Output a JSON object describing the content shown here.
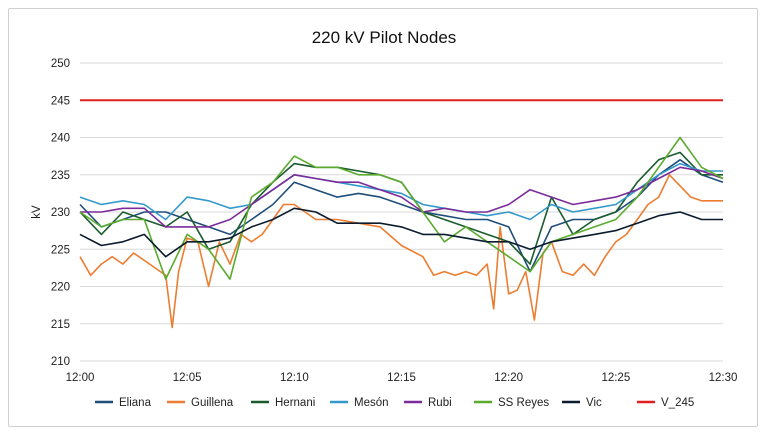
{
  "chart_data": {
    "type": "line",
    "title": "220 kV Pilot Nodes",
    "xlabel": "",
    "ylabel": "kV",
    "ylim": [
      210,
      250
    ],
    "yticks": [
      210,
      215,
      220,
      225,
      230,
      235,
      240,
      245,
      250
    ],
    "xlim": [
      "12:00",
      "12:30"
    ],
    "xticks": [
      "12:00",
      "12:05",
      "12:10",
      "12:15",
      "12:20",
      "12:25",
      "12:30"
    ],
    "grid": true,
    "legend_position": "bottom",
    "series": [
      {
        "name": "Eliana",
        "color": "#1f4e79",
        "x": [
          0,
          1,
          2,
          3,
          4,
          5,
          6,
          7,
          8,
          9,
          10,
          11,
          12,
          13,
          14,
          15,
          16,
          17,
          18,
          19,
          20,
          21,
          22,
          23,
          24,
          25,
          26,
          27,
          28,
          29,
          30
        ],
        "y": [
          231,
          228,
          229,
          230,
          230,
          229,
          228,
          227,
          229,
          231,
          234,
          233,
          232,
          232.5,
          232,
          231,
          230,
          229.5,
          229,
          229,
          228,
          222,
          228,
          229,
          229,
          230,
          232,
          235,
          237,
          235,
          234
        ]
      },
      {
        "name": "Guillena",
        "color": "#ed7d31",
        "x": [
          0,
          0.5,
          1,
          1.5,
          2,
          2.5,
          3,
          3.5,
          4,
          4.3,
          4.6,
          5,
          5.5,
          6,
          6.5,
          7,
          7.5,
          8,
          8.5,
          9,
          9.5,
          10,
          11,
          12,
          13,
          14,
          15,
          16,
          16.5,
          17,
          17.5,
          18,
          18.5,
          19,
          19.3,
          19.6,
          20,
          20.4,
          20.8,
          21.2,
          21.6,
          22,
          22.5,
          23,
          23.5,
          24,
          24.5,
          25,
          25.5,
          26,
          26.5,
          27,
          27.5,
          28,
          28.5,
          29,
          29.5,
          30
        ],
        "y": [
          224,
          221.5,
          223,
          224,
          223,
          224.5,
          223.5,
          222.5,
          221.5,
          214.5,
          222,
          226.5,
          226,
          220,
          226,
          223,
          227,
          226,
          227,
          229,
          231,
          231,
          229,
          229,
          228.5,
          228,
          225.5,
          224,
          221.5,
          222,
          221.5,
          222,
          221.5,
          223,
          217,
          228,
          219,
          219.5,
          222,
          215.5,
          224.5,
          226,
          222,
          221.5,
          223,
          221.5,
          224,
          226,
          227,
          229,
          231,
          232,
          235,
          233.5,
          232,
          231.5,
          231.5,
          231.5
        ]
      },
      {
        "name": "Hernani",
        "color": "#1a5c2e",
        "x": [
          0,
          1,
          2,
          3,
          4,
          5,
          6,
          7,
          8,
          9,
          10,
          11,
          12,
          13,
          14,
          15,
          16,
          17,
          18,
          19,
          20,
          21,
          22,
          23,
          24,
          25,
          26,
          27,
          28,
          29,
          30
        ],
        "y": [
          230,
          227,
          230,
          229,
          228,
          230,
          225,
          226,
          231,
          234,
          236.5,
          236,
          236,
          235.5,
          235,
          234,
          230,
          229,
          228,
          227,
          226,
          223,
          232,
          227,
          229,
          230,
          234,
          237,
          238,
          235,
          235
        ]
      },
      {
        "name": "Mesón",
        "color": "#3399cc",
        "x": [
          0,
          1,
          2,
          3,
          4,
          5,
          6,
          7,
          8,
          9,
          10,
          11,
          12,
          13,
          14,
          15,
          16,
          17,
          18,
          19,
          20,
          21,
          22,
          23,
          24,
          25,
          26,
          27,
          28,
          29,
          30
        ],
        "y": [
          232,
          231,
          231.5,
          231,
          229,
          232,
          231.5,
          230.5,
          231,
          233,
          235,
          234.5,
          234,
          233.5,
          233,
          232.5,
          231,
          230.5,
          230,
          229.5,
          230,
          229,
          231,
          230,
          230.5,
          231,
          233,
          235,
          236.5,
          235.5,
          235.5
        ]
      },
      {
        "name": "Rubi",
        "color": "#7b2c9a",
        "x": [
          0,
          1,
          2,
          3,
          4,
          5,
          6,
          7,
          8,
          9,
          10,
          11,
          12,
          13,
          14,
          15,
          16,
          17,
          18,
          19,
          20,
          21,
          22,
          23,
          24,
          25,
          26,
          27,
          28,
          29,
          30
        ],
        "y": [
          230,
          230,
          230.5,
          230.5,
          228,
          228,
          228,
          229,
          231,
          233,
          235,
          234.5,
          234,
          234,
          233,
          232,
          230,
          230.5,
          230,
          230,
          231,
          233,
          232,
          231,
          231.5,
          232,
          233,
          234.5,
          236,
          235.5,
          234.5
        ]
      },
      {
        "name": "SS Reyes",
        "color": "#5aab2d",
        "x": [
          0,
          1,
          2,
          3,
          4,
          5,
          6,
          7,
          8,
          9,
          10,
          11,
          12,
          13,
          14,
          15,
          16,
          17,
          18,
          19,
          20,
          21,
          22,
          23,
          24,
          25,
          26,
          27,
          28,
          29,
          30
        ],
        "y": [
          230,
          228,
          229,
          229,
          221,
          227,
          225,
          221,
          232,
          234,
          237.5,
          236,
          236,
          235,
          235,
          234,
          230,
          226,
          228,
          226,
          224,
          222,
          226,
          227,
          228,
          229,
          232,
          236,
          240,
          236,
          234.5
        ]
      },
      {
        "name": "Vic",
        "color": "#0b1c2e",
        "x": [
          0,
          1,
          2,
          3,
          4,
          5,
          6,
          7,
          8,
          9,
          10,
          11,
          12,
          13,
          14,
          15,
          16,
          17,
          18,
          19,
          20,
          21,
          22,
          23,
          24,
          25,
          26,
          27,
          28,
          29,
          30
        ],
        "y": [
          227,
          225.5,
          226,
          227,
          224,
          226,
          226,
          226.5,
          228,
          229,
          230.5,
          230,
          228.5,
          228.5,
          228.5,
          228,
          227,
          227,
          226.5,
          226,
          226,
          225,
          226,
          226.5,
          227,
          227.5,
          228.5,
          229.5,
          230,
          229,
          229
        ]
      },
      {
        "name": "V_245",
        "color": "#e02020",
        "x": [
          0,
          30
        ],
        "y": [
          245,
          245
        ]
      }
    ]
  }
}
